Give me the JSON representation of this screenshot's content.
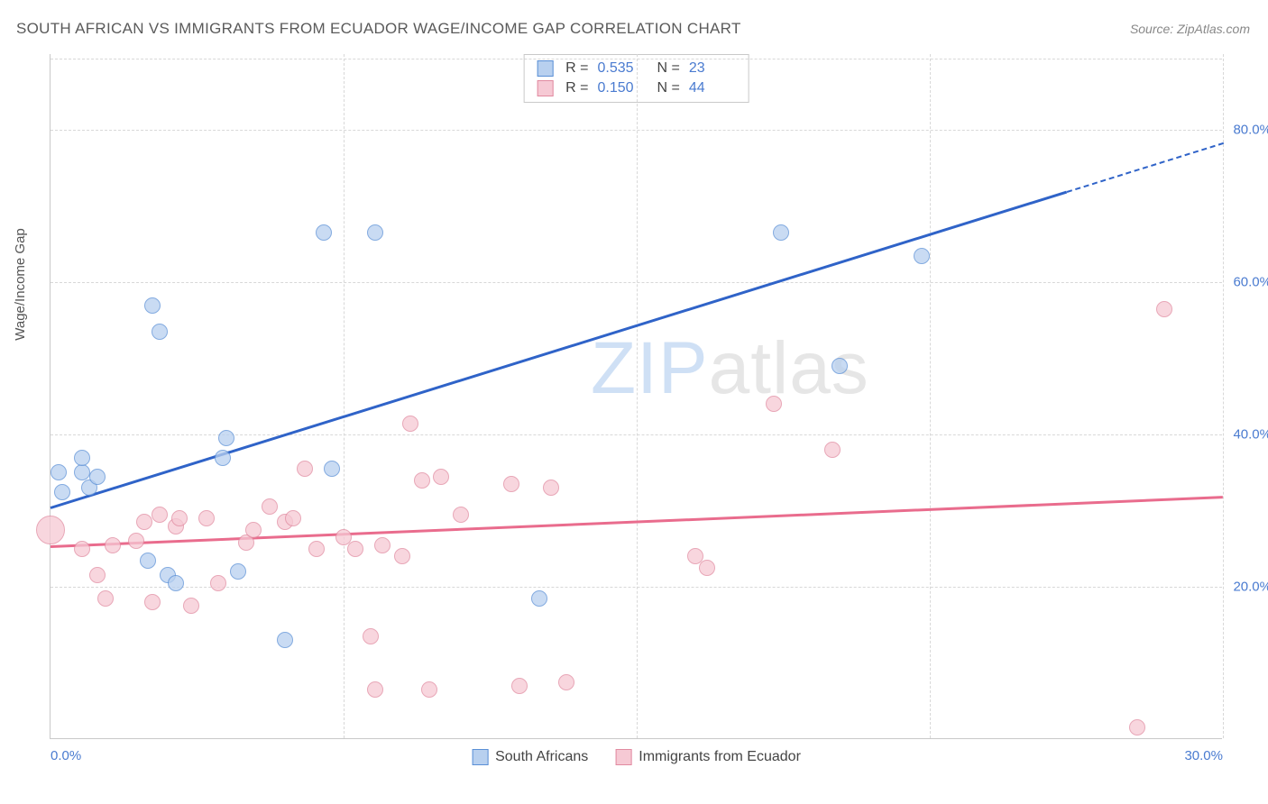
{
  "title": "SOUTH AFRICAN VS IMMIGRANTS FROM ECUADOR WAGE/INCOME GAP CORRELATION CHART",
  "source_label": "Source: ",
  "source_name": "ZipAtlas.com",
  "ylabel": "Wage/Income Gap",
  "watermark": {
    "zip": "ZIP",
    "rest": "atlas"
  },
  "chart": {
    "type": "scatter",
    "background_color": "#ffffff",
    "grid_color": "#d8d8d8",
    "axis_color": "#c9c9c9",
    "tick_color": "#4a7bd0",
    "xlim": [
      0,
      30
    ],
    "ylim": [
      0,
      90
    ],
    "xticks": [
      0.0,
      30.0
    ],
    "xtick_labels": [
      "0.0%",
      "30.0%"
    ],
    "yticks": [
      20.0,
      40.0,
      60.0,
      80.0
    ],
    "ytick_labels": [
      "20.0%",
      "40.0%",
      "60.0%",
      "80.0%"
    ],
    "v_grid_at": [
      0,
      7.5,
      15,
      22.5,
      30
    ],
    "point_radius": 9,
    "point_border_width": 1,
    "series": [
      {
        "name": "South Africans",
        "fill": "#b8d0ef",
        "stroke": "#5a8fd6",
        "fill_opacity": 0.75,
        "R": "0.535",
        "N": "23",
        "trend": {
          "x1": 0,
          "y1": 30.5,
          "x2": 26,
          "y2": 72,
          "color": "#2f63c8",
          "width": 3,
          "extend_dashed_to_x": 30,
          "extend_dashed_to_y": 78.4
        },
        "points": [
          [
            0.2,
            35.0
          ],
          [
            0.3,
            32.5
          ],
          [
            0.8,
            35.0
          ],
          [
            0.8,
            37.0
          ],
          [
            1.0,
            33.0
          ],
          [
            1.2,
            34.5
          ],
          [
            2.5,
            23.5
          ],
          [
            2.6,
            57.0
          ],
          [
            2.8,
            53.5
          ],
          [
            3.0,
            21.5
          ],
          [
            3.2,
            20.5
          ],
          [
            4.4,
            37.0
          ],
          [
            4.5,
            39.5
          ],
          [
            4.8,
            22.0
          ],
          [
            6.0,
            13.0
          ],
          [
            7.0,
            66.5
          ],
          [
            7.2,
            35.5
          ],
          [
            8.3,
            66.5
          ],
          [
            12.5,
            18.5
          ],
          [
            18.7,
            66.5
          ],
          [
            20.2,
            49.0
          ],
          [
            22.3,
            63.5
          ]
        ]
      },
      {
        "name": "Immigrants from Ecuador",
        "fill": "#f6c9d4",
        "stroke": "#e18aa0",
        "fill_opacity": 0.75,
        "R": "0.150",
        "N": "44",
        "trend": {
          "x1": 0,
          "y1": 25.5,
          "x2": 30,
          "y2": 32,
          "color": "#e96c8d",
          "width": 2.5
        },
        "points": [
          [
            0.0,
            27.5,
            16
          ],
          [
            0.8,
            25.0
          ],
          [
            1.2,
            21.5
          ],
          [
            1.4,
            18.5
          ],
          [
            1.6,
            25.5
          ],
          [
            2.2,
            26.0
          ],
          [
            2.4,
            28.5
          ],
          [
            2.6,
            18.0
          ],
          [
            2.8,
            29.5
          ],
          [
            3.2,
            28.0
          ],
          [
            3.3,
            29.0
          ],
          [
            3.6,
            17.5
          ],
          [
            4.0,
            29.0
          ],
          [
            4.3,
            20.5
          ],
          [
            5.0,
            25.8
          ],
          [
            5.2,
            27.5
          ],
          [
            5.6,
            30.5
          ],
          [
            6.0,
            28.5
          ],
          [
            6.2,
            29.0
          ],
          [
            6.5,
            35.5
          ],
          [
            6.8,
            25.0
          ],
          [
            7.5,
            26.5
          ],
          [
            7.8,
            25.0
          ],
          [
            8.2,
            13.5
          ],
          [
            8.3,
            6.5
          ],
          [
            8.5,
            25.5
          ],
          [
            9.0,
            24.0
          ],
          [
            9.2,
            41.5
          ],
          [
            9.5,
            34.0
          ],
          [
            9.7,
            6.5
          ],
          [
            10.0,
            34.5
          ],
          [
            10.5,
            29.5
          ],
          [
            11.8,
            33.5
          ],
          [
            12.0,
            7.0
          ],
          [
            12.8,
            33.0
          ],
          [
            13.2,
            7.5
          ],
          [
            16.5,
            24.0
          ],
          [
            16.8,
            22.5
          ],
          [
            18.5,
            44.0
          ],
          [
            20.0,
            38.0
          ],
          [
            27.8,
            1.5
          ],
          [
            28.5,
            56.5
          ]
        ]
      }
    ]
  },
  "legend": {
    "items": [
      {
        "label": "South Africans",
        "fill": "#b8d0ef",
        "stroke": "#5a8fd6"
      },
      {
        "label": "Immigrants from Ecuador",
        "fill": "#f6c9d4",
        "stroke": "#e18aa0"
      }
    ]
  }
}
